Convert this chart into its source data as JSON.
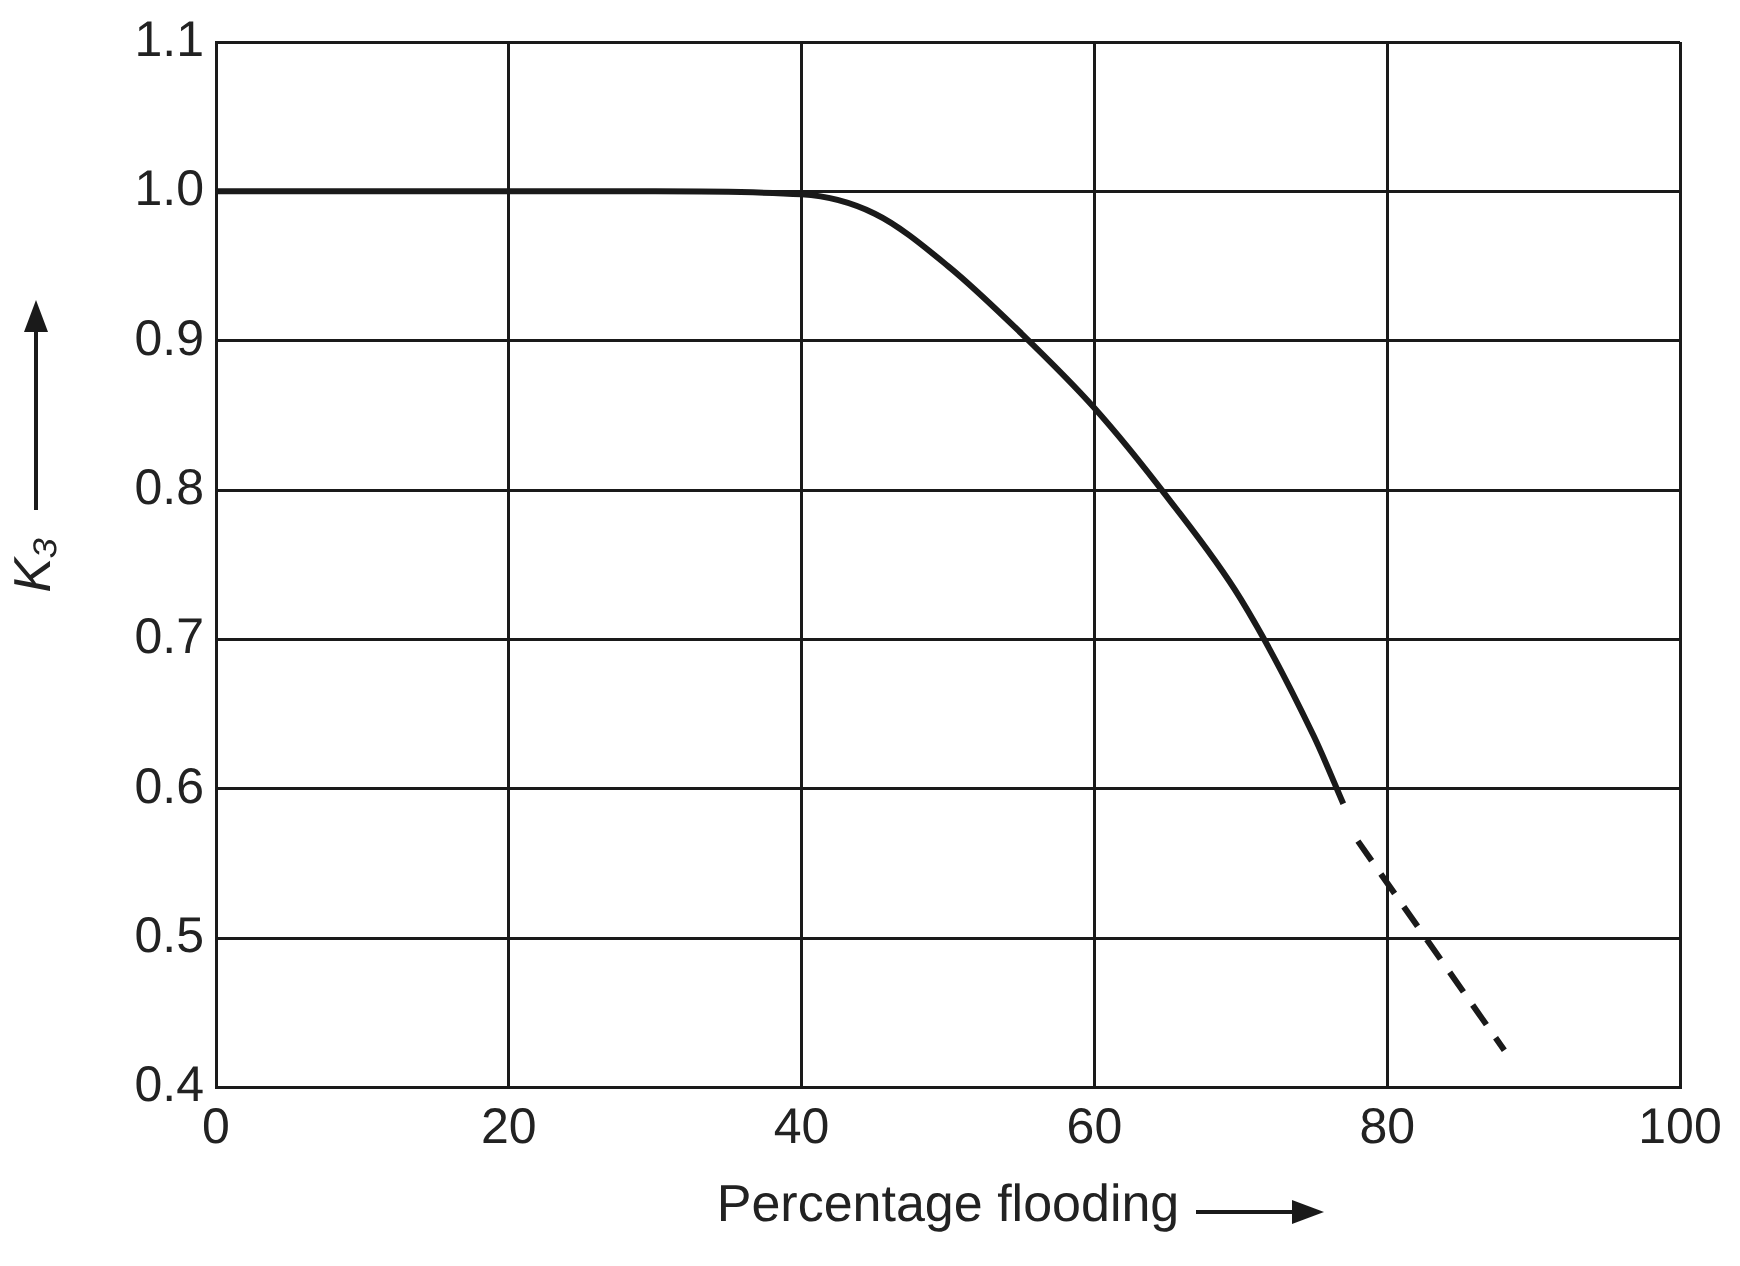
{
  "chart_data": {
    "type": "line",
    "xlabel": "Percentage flooding",
    "ylabel": "K₃",
    "xlim": [
      0,
      100
    ],
    "xticks": [
      0,
      20,
      40,
      60,
      80,
      100
    ],
    "ylim": [
      0.4,
      1.1
    ],
    "yticks": [
      {
        "value": 0.4,
        "label": "0.4"
      },
      {
        "value": 0.5,
        "label": "0.5"
      },
      {
        "value": 0.6,
        "label": "0.6"
      },
      {
        "value": 0.7,
        "label": "0.7"
      },
      {
        "value": 0.8,
        "label": "0.8"
      },
      {
        "value": 0.9,
        "label": "0.9"
      },
      {
        "value": 1.0,
        "label": "1.0"
      },
      {
        "value": 1.1,
        "label": "1.1"
      }
    ],
    "grid": true,
    "legend": false,
    "marker": "none",
    "series": [
      {
        "color": "#1a1a1a",
        "line_style": "solid",
        "x": [
          0,
          10,
          20,
          30,
          40,
          45,
          50,
          55,
          60,
          65,
          70,
          75,
          77
        ],
        "values": [
          1.0,
          1.0,
          1.0,
          1.0,
          0.998,
          0.985,
          0.95,
          0.905,
          0.855,
          0.795,
          0.727,
          0.635,
          0.59
        ]
      },
      {
        "color": "#1a1a1a",
        "line_style": "dashed",
        "x": [
          78,
          88
        ],
        "values": [
          0.565,
          0.425
        ]
      }
    ]
  }
}
